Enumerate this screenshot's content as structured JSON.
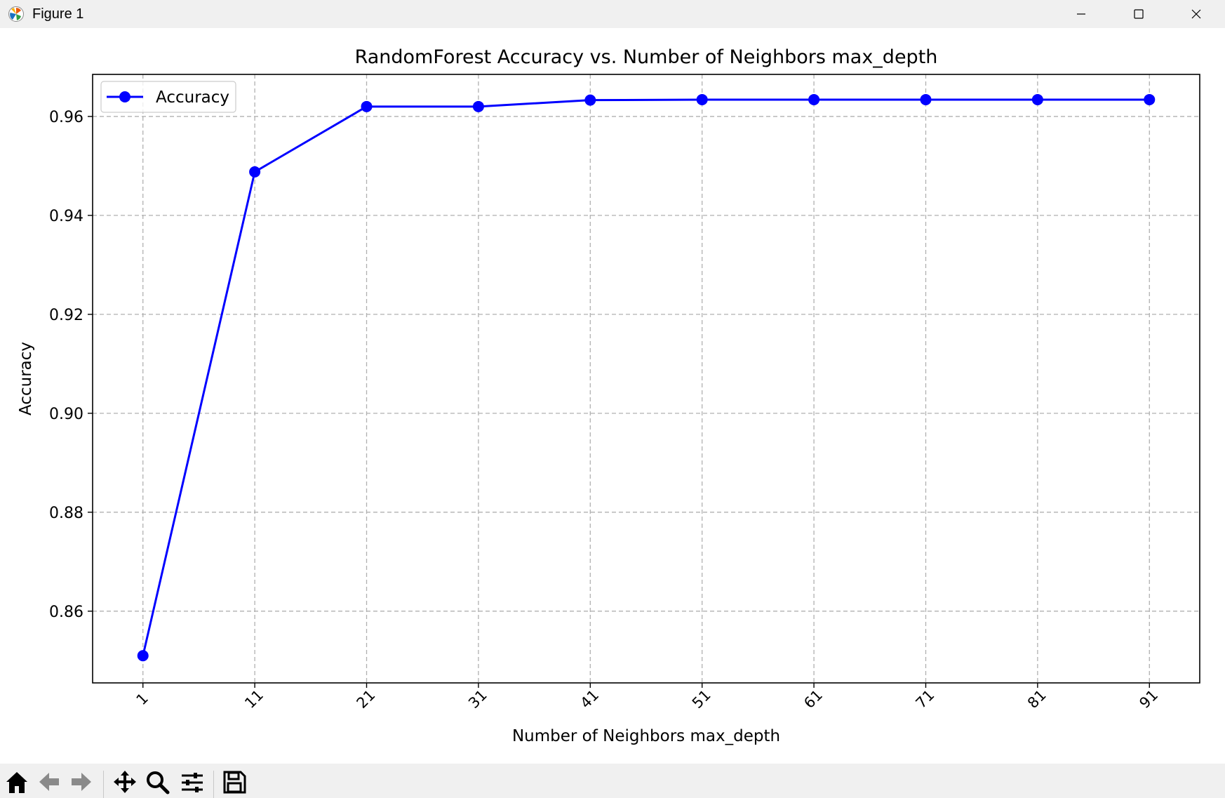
{
  "window": {
    "title": "Figure 1",
    "app_icon": "matplotlib-icon",
    "controls": [
      "minimize-icon",
      "maximize-icon",
      "close-icon"
    ]
  },
  "toolbar": {
    "buttons": [
      "home-icon",
      "back-arrow-icon",
      "forward-arrow-icon",
      "pan-icon",
      "zoom-icon",
      "configure-subplots-icon",
      "save-icon"
    ]
  },
  "chart_data": {
    "type": "line",
    "title": "RandomForest Accuracy vs. Number of Neighbors max_depth",
    "xlabel": "Number of Neighbors max_depth",
    "ylabel": "Accuracy",
    "x": [
      1,
      11,
      21,
      31,
      41,
      51,
      61,
      71,
      81,
      91
    ],
    "xticks": [
      "1",
      "11",
      "21",
      "31",
      "41",
      "51",
      "61",
      "71",
      "81",
      "91"
    ],
    "xlim": [
      -3.5,
      95.5
    ],
    "ylim": [
      0.8455,
      0.9685
    ],
    "yticks": [
      0.86,
      0.88,
      0.9,
      0.92,
      0.94,
      0.96
    ],
    "ytick_labels": [
      "0.86",
      "0.88",
      "0.90",
      "0.92",
      "0.94",
      "0.96"
    ],
    "series": [
      {
        "name": "Accuracy",
        "color": "#0000ff",
        "marker": "circle",
        "values": [
          0.851,
          0.9488,
          0.962,
          0.962,
          0.9633,
          0.9634,
          0.9634,
          0.9634,
          0.9634,
          0.9634
        ]
      }
    ],
    "grid": true,
    "grid_style": "dashed",
    "legend_position": "upper-left",
    "xtick_rotation": 45
  }
}
